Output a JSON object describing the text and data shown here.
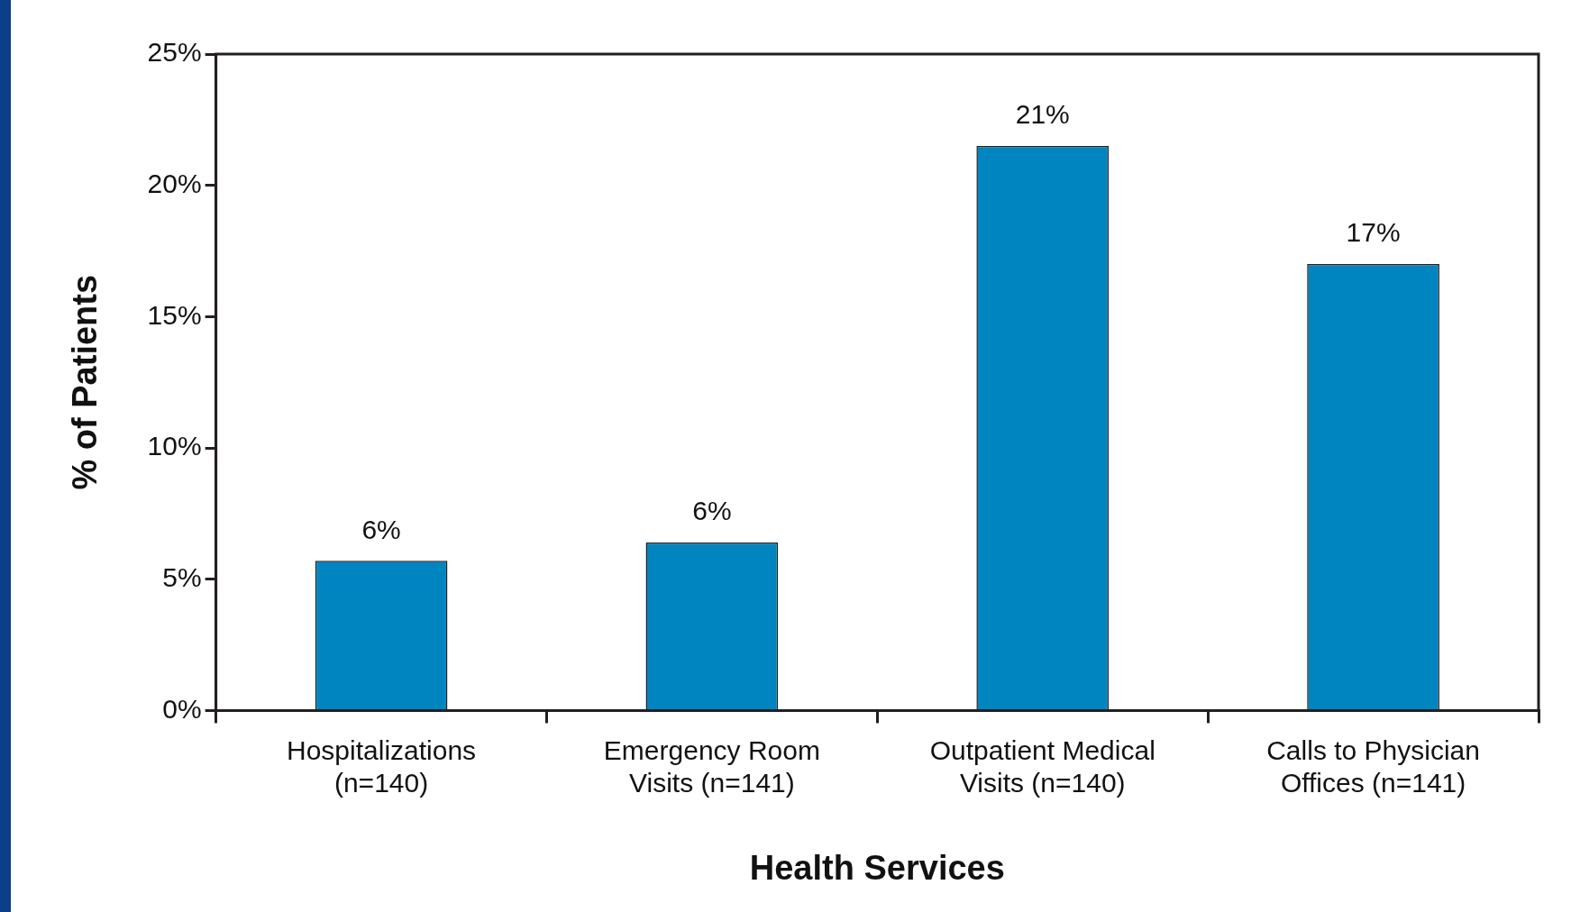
{
  "chart_data": {
    "type": "bar",
    "xlabel": "Health Services",
    "ylabel": "% of Patients",
    "categories": [
      "Hospitalizations (n=140)",
      "Emergency Room Visits (n=141)",
      "Outpatient Medical Visits (n=140)",
      "Calls to Physician Offices (n=141)"
    ],
    "values": [
      5.7,
      6.4,
      21.5,
      17.0
    ],
    "value_labels": [
      "6%",
      "6%",
      "21%",
      "17%"
    ],
    "color": "#0085c0",
    "ylim": [
      0,
      25
    ],
    "yticks": [
      {
        "value": 0,
        "label": "0%"
      },
      {
        "value": 5,
        "label": "5%"
      },
      {
        "value": 10,
        "label": "10%"
      },
      {
        "value": 15,
        "label": "15%"
      },
      {
        "value": 20,
        "label": "20%"
      },
      {
        "value": 25,
        "label": "25%"
      }
    ],
    "grid": false,
    "legend": false
  }
}
